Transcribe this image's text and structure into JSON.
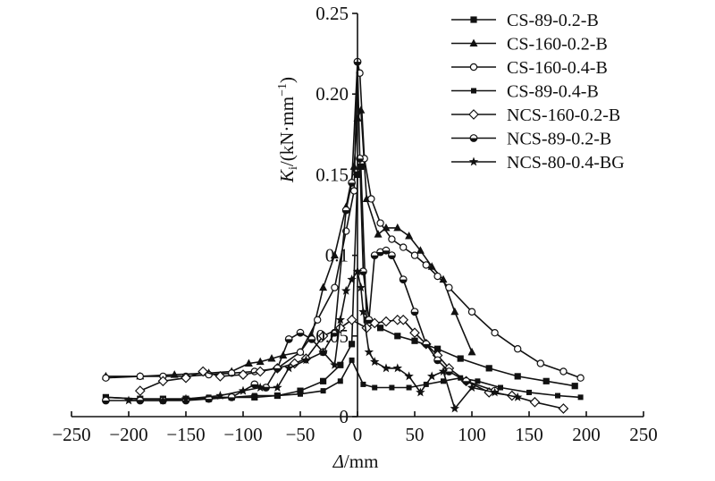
{
  "chart_data": {
    "type": "line",
    "xlabel_var": "Δ",
    "xlabel_unit": "/mm",
    "ylabel_var": "K",
    "ylabel_sub": "i",
    "ylabel_unit": "/(kN·mm",
    "ylabel_sup": "−1",
    "ylabel_close": ")",
    "xlim": [
      -250,
      250
    ],
    "ylim": [
      0,
      0.25
    ],
    "x_ticks": [
      -250,
      -200,
      -150,
      -100,
      -50,
      0,
      50,
      100,
      150,
      200,
      250
    ],
    "x_tick_labels": [
      "−250",
      "−200",
      "−150",
      "−100",
      "−50",
      "0",
      "50",
      "100",
      "150",
      "200",
      "250"
    ],
    "y_ticks": [
      0,
      0.05,
      0.1,
      0.15,
      0.2,
      0.25
    ],
    "y_tick_labels": [
      "0",
      "0.05",
      "0.1",
      "0.15",
      "0.20",
      "0.25"
    ],
    "legend_position": "top-right",
    "series": [
      {
        "name": "CS-89-0.2-B",
        "marker": "square",
        "points": [
          [
            -220,
            0.012
          ],
          [
            -190,
            0.011
          ],
          [
            -170,
            0.011
          ],
          [
            -150,
            0.011
          ],
          [
            -130,
            0.011
          ],
          [
            -110,
            0.012
          ],
          [
            -90,
            0.012
          ],
          [
            -70,
            0.013
          ],
          [
            -50,
            0.016
          ],
          [
            -30,
            0.022
          ],
          [
            -15,
            0.032
          ],
          [
            -5,
            0.045
          ],
          [
            0,
            0.15
          ],
          [
            3,
            0.155
          ],
          [
            8,
            0.06
          ],
          [
            20,
            0.055
          ],
          [
            35,
            0.05
          ],
          [
            50,
            0.047
          ],
          [
            70,
            0.042
          ],
          [
            90,
            0.036
          ],
          [
            115,
            0.03
          ],
          [
            140,
            0.025
          ],
          [
            165,
            0.022
          ],
          [
            190,
            0.019
          ]
        ]
      },
      {
        "name": "CS-160-0.2-B",
        "marker": "triangle",
        "points": [
          [
            -220,
            0.025
          ],
          [
            -190,
            0.025
          ],
          [
            -160,
            0.026
          ],
          [
            -130,
            0.027
          ],
          [
            -110,
            0.028
          ],
          [
            -95,
            0.033
          ],
          [
            -85,
            0.034
          ],
          [
            -75,
            0.036
          ],
          [
            -65,
            0.038
          ],
          [
            -50,
            0.04
          ],
          [
            -40,
            0.05
          ],
          [
            -30,
            0.08
          ],
          [
            -20,
            0.1
          ],
          [
            -10,
            0.13
          ],
          [
            -3,
            0.155
          ],
          [
            0,
            0.185
          ],
          [
            3,
            0.19
          ],
          [
            8,
            0.135
          ],
          [
            18,
            0.113
          ],
          [
            25,
            0.117
          ],
          [
            35,
            0.117
          ],
          [
            45,
            0.112
          ],
          [
            55,
            0.103
          ],
          [
            65,
            0.093
          ],
          [
            75,
            0.085
          ],
          [
            85,
            0.065
          ],
          [
            100,
            0.04
          ]
        ]
      },
      {
        "name": "CS-160-0.4-B",
        "marker": "circle-open",
        "points": [
          [
            -220,
            0.024
          ],
          [
            -190,
            0.025
          ],
          [
            -170,
            0.025
          ],
          [
            -150,
            0.025
          ],
          [
            -130,
            0.026
          ],
          [
            -110,
            0.027
          ],
          [
            -90,
            0.028
          ],
          [
            -70,
            0.03
          ],
          [
            -50,
            0.04
          ],
          [
            -35,
            0.06
          ],
          [
            -20,
            0.08
          ],
          [
            -10,
            0.115
          ],
          [
            -3,
            0.14
          ],
          [
            0,
            0.22
          ],
          [
            2,
            0.213
          ],
          [
            6,
            0.16
          ],
          [
            12,
            0.135
          ],
          [
            20,
            0.12
          ],
          [
            30,
            0.11
          ],
          [
            40,
            0.105
          ],
          [
            50,
            0.1
          ],
          [
            60,
            0.094
          ],
          [
            70,
            0.087
          ],
          [
            80,
            0.08
          ],
          [
            100,
            0.065
          ],
          [
            120,
            0.052
          ],
          [
            140,
            0.042
          ],
          [
            160,
            0.033
          ],
          [
            180,
            0.028
          ],
          [
            195,
            0.024
          ]
        ]
      },
      {
        "name": "CS-89-0.4-B",
        "marker": "square-small",
        "points": [
          [
            -220,
            0.012
          ],
          [
            -190,
            0.011
          ],
          [
            -170,
            0.011
          ],
          [
            -150,
            0.011
          ],
          [
            -130,
            0.012
          ],
          [
            -110,
            0.012
          ],
          [
            -90,
            0.013
          ],
          [
            -70,
            0.013
          ],
          [
            -50,
            0.014
          ],
          [
            -30,
            0.016
          ],
          [
            -15,
            0.022
          ],
          [
            -5,
            0.035
          ],
          [
            5,
            0.02
          ],
          [
            15,
            0.018
          ],
          [
            30,
            0.018
          ],
          [
            45,
            0.018
          ],
          [
            60,
            0.02
          ],
          [
            75,
            0.022
          ],
          [
            90,
            0.024
          ],
          [
            105,
            0.022
          ],
          [
            125,
            0.018
          ],
          [
            150,
            0.015
          ],
          [
            175,
            0.013
          ],
          [
            195,
            0.012
          ]
        ]
      },
      {
        "name": "NCS-160-0.2-B",
        "marker": "diamond-open",
        "points": [
          [
            -190,
            0.016
          ],
          [
            -170,
            0.022
          ],
          [
            -150,
            0.024
          ],
          [
            -135,
            0.028
          ],
          [
            -120,
            0.025
          ],
          [
            -100,
            0.026
          ],
          [
            -85,
            0.028
          ],
          [
            -70,
            0.03
          ],
          [
            -55,
            0.033
          ],
          [
            -45,
            0.036
          ],
          [
            -30,
            0.05
          ],
          [
            -15,
            0.055
          ],
          [
            -5,
            0.06
          ],
          [
            8,
            0.055
          ],
          [
            15,
            0.058
          ],
          [
            25,
            0.059
          ],
          [
            35,
            0.06
          ],
          [
            40,
            0.06
          ],
          [
            50,
            0.052
          ],
          [
            60,
            0.045
          ],
          [
            70,
            0.038
          ],
          [
            80,
            0.03
          ],
          [
            95,
            0.022
          ],
          [
            115,
            0.015
          ],
          [
            135,
            0.013
          ],
          [
            155,
            0.009
          ],
          [
            180,
            0.005
          ]
        ]
      },
      {
        "name": "NCS-89-0.2-B",
        "marker": "circle-half",
        "points": [
          [
            -220,
            0.01
          ],
          [
            -190,
            0.01
          ],
          [
            -170,
            0.01
          ],
          [
            -150,
            0.01
          ],
          [
            -130,
            0.011
          ],
          [
            -110,
            0.012
          ],
          [
            -90,
            0.02
          ],
          [
            -80,
            0.018
          ],
          [
            -70,
            0.03
          ],
          [
            -60,
            0.048
          ],
          [
            -50,
            0.052
          ],
          [
            -40,
            0.048
          ],
          [
            -30,
            0.04
          ],
          [
            -20,
            0.052
          ],
          [
            -10,
            0.128
          ],
          [
            -5,
            0.145
          ],
          [
            0,
            0.22
          ],
          [
            2,
            0.16
          ],
          [
            5,
            0.09
          ],
          [
            10,
            0.06
          ],
          [
            15,
            0.1
          ],
          [
            20,
            0.102
          ],
          [
            25,
            0.103
          ],
          [
            30,
            0.1
          ],
          [
            40,
            0.085
          ],
          [
            50,
            0.065
          ],
          [
            60,
            0.045
          ],
          [
            70,
            0.035
          ],
          [
            80,
            0.028
          ],
          [
            95,
            0.022
          ],
          [
            120,
            0.016
          ]
        ]
      },
      {
        "name": "NCS-80-0.4-BG",
        "marker": "star",
        "points": [
          [
            -200,
            0.01
          ],
          [
            -170,
            0.01
          ],
          [
            -150,
            0.011
          ],
          [
            -120,
            0.013
          ],
          [
            -100,
            0.016
          ],
          [
            -85,
            0.018
          ],
          [
            -70,
            0.018
          ],
          [
            -60,
            0.03
          ],
          [
            -45,
            0.035
          ],
          [
            -30,
            0.04
          ],
          [
            -20,
            0.032
          ],
          [
            -15,
            0.06
          ],
          [
            -10,
            0.078
          ],
          [
            -5,
            0.085
          ],
          [
            0,
            0.09
          ],
          [
            3,
            0.08
          ],
          [
            5,
            0.065
          ],
          [
            10,
            0.04
          ],
          [
            15,
            0.034
          ],
          [
            25,
            0.03
          ],
          [
            35,
            0.03
          ],
          [
            45,
            0.025
          ],
          [
            55,
            0.015
          ],
          [
            65,
            0.025
          ],
          [
            75,
            0.028
          ],
          [
            85,
            0.005
          ],
          [
            100,
            0.018
          ],
          [
            120,
            0.015
          ],
          [
            140,
            0.012
          ]
        ]
      }
    ]
  }
}
